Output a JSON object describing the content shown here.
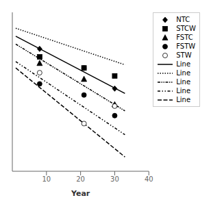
{
  "chart_data": {
    "type": "scatter",
    "xlabel": "Year",
    "xlim": [
      0,
      40
    ],
    "xticks": [
      10,
      20,
      30,
      40
    ],
    "ylim": [
      0.05,
      1.05
    ],
    "yticks": [],
    "tick_labels": "x",
    "legend": "upper right",
    "series": [
      {
        "name": "NTC",
        "type": "scatter",
        "marker": "diamond",
        "color": "#000000",
        "x": [
          8,
          21,
          30
        ],
        "values": [
          0.82,
          0.7,
          0.57
        ]
      },
      {
        "name": "STCW",
        "type": "scatter",
        "marker": "square",
        "color": "#000000",
        "x": [
          8,
          21,
          30
        ],
        "values": [
          0.77,
          0.7,
          0.65
        ]
      },
      {
        "name": "FSTC",
        "type": "scatter",
        "marker": "triangle",
        "color": "#000000",
        "x": [
          8,
          21,
          30
        ],
        "values": [
          0.73,
          0.63,
          0.47
        ]
      },
      {
        "name": "FSTW",
        "type": "scatter",
        "marker": "circle",
        "color": "#000000",
        "x": [
          8,
          21,
          30
        ],
        "values": [
          0.6,
          0.53,
          0.4
        ]
      },
      {
        "name": "STW",
        "type": "scatter",
        "marker": "open_circle",
        "color": "#000000",
        "x": [
          8,
          21,
          30
        ],
        "values": [
          0.67,
          0.35,
          0.46
        ]
      },
      {
        "name": "Line",
        "type": "line",
        "line_style": "solid",
        "color": "#000000",
        "x": [
          1,
          33
        ],
        "values": [
          0.9,
          0.54
        ]
      },
      {
        "name": "Line",
        "type": "line",
        "line_style": "dotted",
        "color": "#000000",
        "x": [
          1,
          33
        ],
        "values": [
          0.95,
          0.72
        ]
      },
      {
        "name": "Line",
        "type": "line",
        "line_style": "densely_dashdotdot",
        "color": "#000000",
        "x": [
          1,
          33
        ],
        "values": [
          0.85,
          0.43
        ]
      },
      {
        "name": "Line",
        "type": "line",
        "line_style": "loosely_dashdotdot",
        "color": "#000000",
        "x": [
          1,
          33
        ],
        "values": [
          0.74,
          0.28
        ]
      },
      {
        "name": "Line",
        "type": "line",
        "line_style": "dashed",
        "color": "#000000",
        "x": [
          1,
          33
        ],
        "values": [
          0.7,
          0.14
        ]
      }
    ]
  }
}
